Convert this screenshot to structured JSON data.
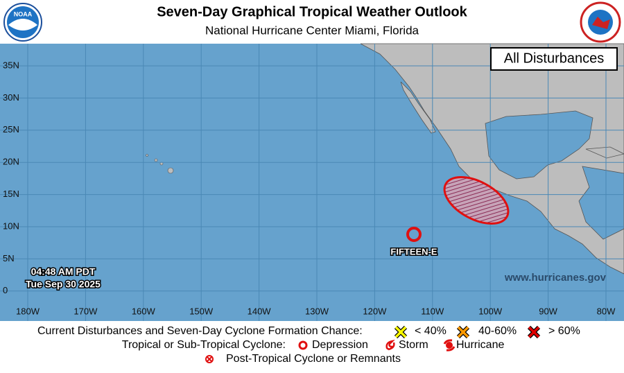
{
  "header": {
    "title": "Seven-Day Graphical Tropical Weather Outlook",
    "subtitle": "National Hurricane Center  Miami, Florida",
    "logo_left": "NOAA"
  },
  "map": {
    "panel_label": "All Disturbances",
    "time": "04:48 AM PDT",
    "date": "Tue Sep 30 2025",
    "website": "www.hurricanes.gov",
    "lat_labels": [
      "35N",
      "30N",
      "25N",
      "20N",
      "15N",
      "10N",
      "5N",
      "0"
    ],
    "lon_labels": [
      "180W",
      "170W",
      "160W",
      "150W",
      "140W",
      "130W",
      "120W",
      "110W",
      "100W",
      "90W",
      "80W"
    ],
    "systems": [
      {
        "label": "FIFTEEN-E"
      }
    ]
  },
  "legend": {
    "row1": {
      "title": "Current Disturbances and Seven-Day Cyclone Formation Chance:",
      "low": "< 40%",
      "medium": "40-60%",
      "high": "> 60%"
    },
    "row2": {
      "title": "Tropical or Sub-Tropical Cyclone:",
      "depression": "Depression",
      "storm": "Storm",
      "hurricane": "Hurricane"
    },
    "row3": {
      "title": "Post-Tropical Cyclone or Remnants"
    }
  }
}
